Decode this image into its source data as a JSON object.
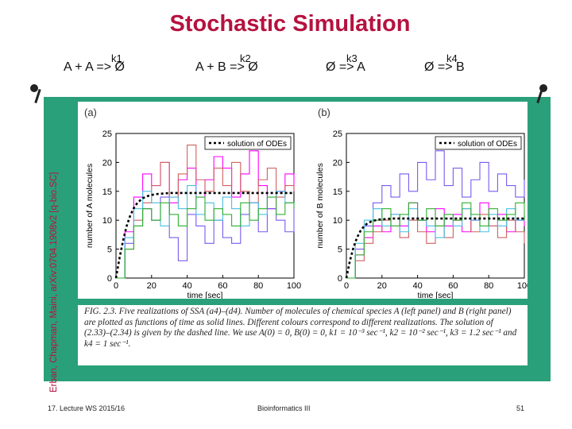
{
  "slide": {
    "title": "Stochastic Simulation",
    "reactions": [
      {
        "text": "A + A  =>  Ø",
        "rate": "k1"
      },
      {
        "text": "A + B  =>  Ø",
        "rate": "k2"
      },
      {
        "text": "Ø  =>  A",
        "rate": "k3"
      },
      {
        "text": "Ø  =>  B",
        "rate": "k4"
      }
    ],
    "side_citation": "Erban, Chapman, Maini, arXiv:0704.1908v2 [q-bio.SC]",
    "caption": "FIG. 2.3. Five realizations of SSA (a4)–(d4). Number of molecules of chemical species A (left panel) and B (right panel) are plotted as functions of time as solid lines. Different colours correspond to different realizations. The solution of (2.33)–(2.34) is given by the dashed line. We use A(0) = 0, B(0) = 0, k1 = 10⁻³ sec⁻¹, k2 = 10⁻² sec⁻¹, k3 = 1.2 sec⁻¹ and k4 = 1 sec⁻¹.",
    "footer_left": "17. Lecture WS 2015/16",
    "footer_center": "Bioinformatics III",
    "page_number": "51"
  },
  "chart_data": [
    {
      "type": "line",
      "panel_label": "(a)",
      "xlabel": "time [sec]",
      "ylabel": "number of A molecules",
      "xlim": [
        0,
        100
      ],
      "ylim": [
        0,
        25
      ],
      "xticks": [
        0,
        20,
        40,
        60,
        80,
        100
      ],
      "yticks": [
        0,
        5,
        10,
        15,
        20,
        25
      ],
      "legend": "top-right",
      "series": [
        {
          "name": "solution of ODEs",
          "style": "dashed",
          "color": "#000000",
          "x": [
            0,
            2,
            4,
            6,
            8,
            10,
            12,
            15,
            18,
            22,
            26,
            30,
            40,
            50,
            60,
            70,
            80,
            90,
            100
          ],
          "y": [
            0,
            3.5,
            6.5,
            9.0,
            10.8,
            12.1,
            13.0,
            13.8,
            14.2,
            14.5,
            14.6,
            14.7,
            14.7,
            14.7,
            14.7,
            14.7,
            14.7,
            14.7,
            14.7
          ]
        },
        {
          "color": "#ff00ff",
          "x": [
            0,
            5,
            10,
            15,
            20,
            25,
            30,
            35,
            40,
            45,
            50,
            55,
            60,
            65,
            70,
            75,
            80,
            85,
            90,
            95,
            100
          ],
          "y": [
            0,
            8,
            14,
            18,
            16,
            20,
            13,
            17,
            19,
            14,
            17,
            21,
            19,
            14,
            18,
            22,
            16,
            12,
            15,
            18,
            15
          ]
        },
        {
          "color": "#d06060",
          "x": [
            0,
            5,
            10,
            15,
            20,
            25,
            30,
            35,
            40,
            45,
            50,
            55,
            60,
            65,
            70,
            75,
            80,
            85,
            90,
            95,
            100
          ],
          "y": [
            0,
            5,
            10,
            13,
            16,
            20,
            14,
            18,
            23,
            17,
            15,
            19,
            16,
            20,
            15,
            13,
            17,
            19,
            14,
            16,
            15
          ]
        },
        {
          "color": "#7a5af0",
          "x": [
            0,
            5,
            10,
            15,
            20,
            25,
            30,
            35,
            40,
            45,
            50,
            55,
            60,
            65,
            70,
            75,
            80,
            85,
            90,
            95,
            100
          ],
          "y": [
            0,
            6,
            9,
            12,
            10,
            14,
            7,
            3,
            11,
            9,
            6,
            10,
            7,
            6,
            11,
            13,
            8,
            12,
            10,
            8,
            12
          ]
        },
        {
          "color": "#4ac0e0",
          "x": [
            0,
            5,
            10,
            15,
            20,
            25,
            30,
            35,
            40,
            45,
            50,
            55,
            60,
            65,
            70,
            75,
            80,
            85,
            90,
            95,
            100
          ],
          "y": [
            0,
            7,
            12,
            15,
            13,
            9,
            14,
            12,
            16,
            11,
            13,
            10,
            14,
            12,
            9,
            13,
            11,
            14,
            15,
            13,
            12
          ]
        },
        {
          "color": "#30b030",
          "x": [
            0,
            5,
            10,
            15,
            20,
            25,
            30,
            35,
            40,
            45,
            50,
            55,
            60,
            65,
            70,
            75,
            80,
            85,
            90,
            95,
            100
          ],
          "y": [
            0,
            5,
            9,
            12,
            10,
            13,
            11,
            9,
            12,
            14,
            10,
            12,
            11,
            9,
            13,
            10,
            12,
            14,
            11,
            13,
            12
          ]
        }
      ]
    },
    {
      "type": "line",
      "panel_label": "(b)",
      "xlabel": "time [sec]",
      "ylabel": "number of B molecules",
      "xlim": [
        0,
        100
      ],
      "ylim": [
        0,
        25
      ],
      "xticks": [
        0,
        20,
        40,
        60,
        80,
        100
      ],
      "yticks": [
        0,
        5,
        10,
        15,
        20,
        25
      ],
      "legend": "top-right",
      "series": [
        {
          "name": "solution of ODEs",
          "style": "dashed",
          "color": "#000000",
          "x": [
            0,
            2,
            4,
            6,
            8,
            10,
            12,
            15,
            18,
            22,
            26,
            30,
            40,
            50,
            60,
            70,
            80,
            90,
            100
          ],
          "y": [
            0,
            3.0,
            5.3,
            7.0,
            8.2,
            9.0,
            9.5,
            9.9,
            10.1,
            10.2,
            10.3,
            10.3,
            10.3,
            10.3,
            10.3,
            10.3,
            10.3,
            10.3,
            10.3
          ]
        },
        {
          "color": "#ff00ff",
          "x": [
            0,
            5,
            10,
            15,
            20,
            25,
            30,
            35,
            40,
            45,
            50,
            55,
            60,
            65,
            70,
            75,
            80,
            85,
            90,
            95,
            100
          ],
          "y": [
            0,
            4,
            7,
            9,
            8,
            11,
            9,
            13,
            10,
            8,
            12,
            9,
            11,
            8,
            10,
            13,
            9,
            11,
            8,
            10,
            9
          ]
        },
        {
          "color": "#d06060",
          "x": [
            0,
            5,
            10,
            15,
            20,
            25,
            30,
            35,
            40,
            45,
            50,
            55,
            60,
            65,
            70,
            75,
            80,
            85,
            90,
            95,
            100
          ],
          "y": [
            0,
            3,
            6,
            8,
            10,
            9,
            7,
            10,
            8,
            6,
            9,
            7,
            10,
            12,
            8,
            11,
            9,
            7,
            10,
            8,
            6
          ]
        },
        {
          "color": "#7a5af0",
          "x": [
            0,
            5,
            10,
            15,
            20,
            25,
            30,
            35,
            40,
            45,
            50,
            55,
            60,
            65,
            70,
            75,
            80,
            85,
            90,
            95,
            100
          ],
          "y": [
            0,
            5,
            9,
            13,
            16,
            14,
            18,
            15,
            20,
            17,
            22,
            16,
            19,
            14,
            17,
            20,
            15,
            18,
            16,
            14,
            17
          ]
        },
        {
          "color": "#4ac0e0",
          "x": [
            0,
            5,
            10,
            15,
            20,
            25,
            30,
            35,
            40,
            45,
            50,
            55,
            60,
            65,
            70,
            75,
            80,
            85,
            90,
            95,
            100
          ],
          "y": [
            0,
            6,
            10,
            12,
            9,
            11,
            8,
            12,
            10,
            9,
            7,
            11,
            9,
            12,
            10,
            8,
            11,
            9,
            12,
            10,
            11
          ]
        },
        {
          "color": "#30b030",
          "x": [
            0,
            5,
            10,
            15,
            20,
            25,
            30,
            35,
            40,
            45,
            50,
            55,
            60,
            65,
            70,
            75,
            80,
            85,
            90,
            95,
            100
          ],
          "y": [
            0,
            4,
            8,
            10,
            12,
            9,
            11,
            13,
            10,
            12,
            9,
            11,
            10,
            13,
            11,
            9,
            12,
            10,
            11,
            13,
            10
          ]
        }
      ]
    }
  ]
}
